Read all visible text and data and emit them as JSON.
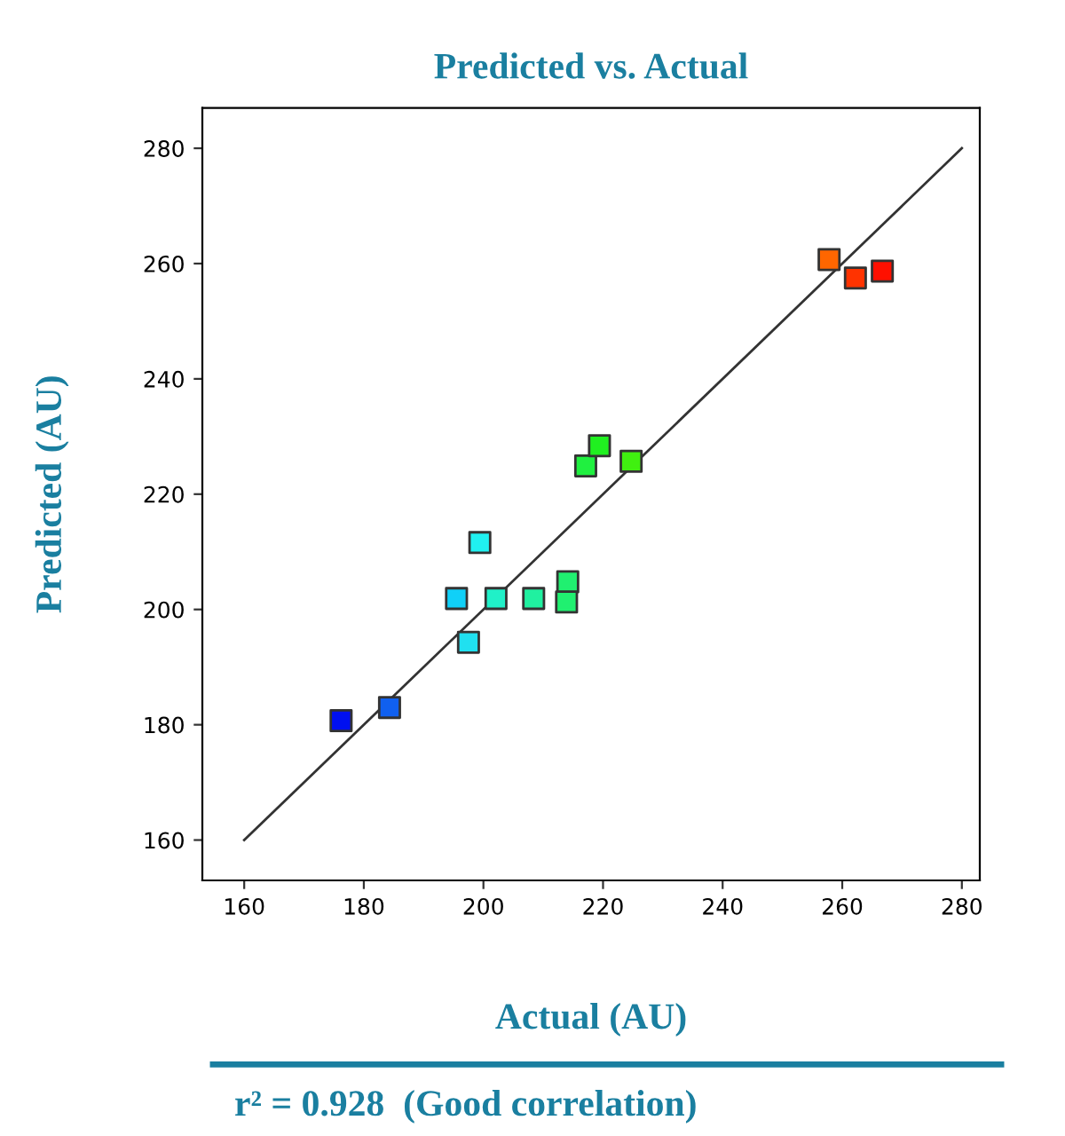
{
  "chart_data": {
    "type": "scatter",
    "title": "Predicted vs. Actual",
    "xlabel": "Actual (AU)",
    "ylabel": "Predicted (AU)",
    "annotations": [
      "r² = 0.928  (Good correlation)"
    ],
    "xlim": [
      153,
      283
    ],
    "ylim": [
      153,
      287
    ],
    "xticks": [
      160,
      180,
      200,
      220,
      240,
      260,
      280
    ],
    "yticks": [
      160,
      180,
      200,
      220,
      240,
      260,
      280
    ],
    "grid": false,
    "marker": "square",
    "series": [
      {
        "type": "line",
        "color": "#333333",
        "x": [
          160,
          280
        ],
        "values": [
          160,
          280
        ],
        "line_style": "solid",
        "marker": "none"
      },
      {
        "x": [
          176.2,
          184.3,
          195.5,
          197.5,
          199.4,
          202.1,
          208.4,
          214.1,
          213.9,
          217.1,
          219.4,
          224.7,
          257.8,
          262.2,
          266.7
        ],
        "values": [
          180.7,
          183.0,
          201.9,
          194.3,
          211.6,
          201.9,
          201.9,
          204.8,
          201.3,
          224.9,
          228.4,
          225.7,
          260.7,
          257.5,
          258.7
        ],
        "colors": [
          "#0010f0",
          "#1060f0",
          "#10d0f8",
          "#20e0f0",
          "#20f0f0",
          "#20f0c8",
          "#20f0a0",
          "#20f070",
          "#20f070",
          "#20f040",
          "#20f020",
          "#40f010",
          "#ff6600",
          "#ff3300",
          "#ff1000"
        ]
      }
    ]
  }
}
